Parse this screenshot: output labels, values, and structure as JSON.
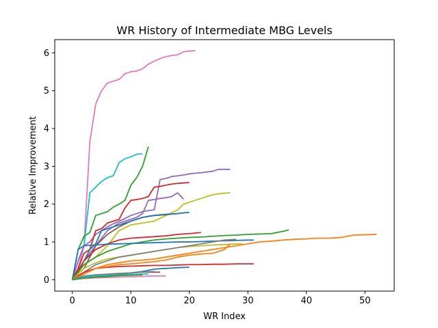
{
  "chart_data": {
    "type": "line",
    "title": "WR History of Intermediate MBG Levels",
    "xlabel": "WR Index",
    "ylabel": "Relative Improvement",
    "xlim": [
      -3,
      55
    ],
    "ylim": [
      -0.3,
      6.35
    ],
    "xticks": [
      0,
      10,
      20,
      30,
      40,
      50
    ],
    "yticks": [
      0,
      1,
      2,
      3,
      4,
      5,
      6
    ],
    "grid": false,
    "legend": "none",
    "series": [
      {
        "color": "#e377c2",
        "x": [
          0,
          1,
          2,
          3,
          4,
          5,
          6,
          7,
          8,
          9,
          10,
          11,
          12,
          13,
          14,
          15,
          16,
          17,
          18,
          19,
          20,
          21
        ],
        "y": [
          0,
          0.3,
          0.9,
          3.65,
          4.65,
          5.0,
          5.2,
          5.25,
          5.3,
          5.45,
          5.5,
          5.52,
          5.58,
          5.7,
          5.78,
          5.85,
          5.9,
          5.93,
          5.95,
          6.03,
          6.05,
          6.06
        ]
      },
      {
        "color": "#17becf",
        "x": [
          0,
          1,
          2,
          3,
          4,
          5,
          6,
          7,
          8,
          9,
          10,
          11,
          12
        ],
        "y": [
          0,
          0.5,
          0.9,
          2.3,
          2.45,
          2.6,
          2.7,
          2.75,
          3.1,
          3.2,
          3.25,
          3.32,
          3.33
        ]
      },
      {
        "color": "#2ca02c",
        "x": [
          0,
          1,
          2,
          3,
          4,
          5,
          6,
          7,
          8,
          9,
          10,
          11,
          12,
          13
        ],
        "y": [
          0,
          0.8,
          1.15,
          1.25,
          1.7,
          1.75,
          1.8,
          1.92,
          2.0,
          2.1,
          2.5,
          2.7,
          3.0,
          3.52
        ]
      },
      {
        "color": "#9467bd",
        "x": [
          0,
          1,
          2,
          3,
          4,
          5,
          6,
          7,
          8,
          9,
          10,
          11,
          12,
          13,
          14,
          15,
          16,
          17,
          18,
          19,
          20,
          21,
          22,
          23,
          24,
          25,
          26,
          27
        ],
        "y": [
          0,
          0.5,
          0.9,
          1.0,
          1.2,
          1.3,
          1.4,
          1.48,
          1.55,
          1.62,
          1.7,
          1.75,
          1.8,
          1.83,
          1.85,
          2.65,
          2.68,
          2.73,
          2.75,
          2.77,
          2.8,
          2.82,
          2.83,
          2.85,
          2.87,
          2.92,
          2.92,
          2.92
        ]
      },
      {
        "color": "#d62728",
        "x": [
          0,
          1,
          2,
          3,
          4,
          5,
          6,
          7,
          8,
          9,
          10,
          11,
          12,
          13,
          14,
          15,
          16,
          17,
          18,
          19,
          20
        ],
        "y": [
          0,
          0.3,
          0.7,
          0.8,
          1.3,
          1.35,
          1.5,
          1.55,
          1.6,
          1.9,
          2.1,
          2.12,
          2.15,
          2.2,
          2.45,
          2.47,
          2.5,
          2.53,
          2.55,
          2.56,
          2.57
        ]
      },
      {
        "color": "#bcbd22",
        "x": [
          0,
          2,
          4,
          6,
          8,
          10,
          12,
          14,
          16,
          18,
          19,
          20,
          21,
          22,
          23,
          24,
          25,
          26,
          27
        ],
        "y": [
          0,
          0.4,
          0.6,
          0.9,
          1.3,
          1.45,
          1.5,
          1.55,
          1.7,
          1.85,
          2.0,
          2.05,
          2.1,
          2.15,
          2.2,
          2.25,
          2.27,
          2.29,
          2.3
        ]
      },
      {
        "color": "#9467bd",
        "x": [
          0,
          1,
          2,
          3,
          4,
          5,
          6,
          7,
          8,
          9,
          10,
          11,
          12,
          13,
          14,
          15,
          16,
          17,
          18,
          19
        ],
        "y": [
          0,
          0.2,
          0.5,
          0.7,
          0.9,
          1.1,
          1.3,
          1.4,
          1.5,
          1.55,
          1.6,
          1.65,
          1.75,
          2.1,
          2.12,
          2.15,
          2.17,
          2.2,
          2.3,
          2.13
        ]
      },
      {
        "color": "#8c564b",
        "x": [
          0,
          2,
          4,
          6,
          8,
          10,
          12,
          14,
          16,
          18
        ],
        "y": [
          0,
          0.3,
          0.9,
          1.2,
          1.4,
          1.55,
          1.65,
          1.7,
          1.72,
          1.75
        ]
      },
      {
        "color": "#1f77b4",
        "x": [
          0,
          1,
          2,
          3,
          4,
          5,
          6,
          7,
          8,
          9,
          10,
          11,
          12,
          13,
          14,
          15,
          16,
          17,
          18,
          19,
          20
        ],
        "y": [
          0,
          0.2,
          0.5,
          0.8,
          0.95,
          1.3,
          1.35,
          1.4,
          1.45,
          1.5,
          1.55,
          1.6,
          1.65,
          1.68,
          1.7,
          1.72,
          1.73,
          1.74,
          1.75,
          1.77,
          1.78
        ]
      },
      {
        "color": "#d62728",
        "x": [
          0,
          2,
          4,
          6,
          8,
          10,
          12,
          14,
          16,
          18,
          20,
          22
        ],
        "y": [
          0,
          0.5,
          0.8,
          0.95,
          1.05,
          1.1,
          1.12,
          1.14,
          1.16,
          1.2,
          1.22,
          1.25
        ]
      },
      {
        "color": "#2ca02c",
        "x": [
          0,
          2,
          4,
          6,
          8,
          10,
          12,
          14,
          16,
          18,
          20,
          22,
          24,
          26,
          28,
          30,
          32,
          34,
          36,
          37
        ],
        "y": [
          0,
          0.4,
          0.6,
          0.75,
          0.85,
          0.95,
          1.0,
          1.05,
          1.08,
          1.1,
          1.12,
          1.13,
          1.15,
          1.17,
          1.18,
          1.2,
          1.21,
          1.22,
          1.28,
          1.32
        ]
      },
      {
        "color": "#ff7f0e",
        "x": [
          0,
          2,
          4,
          6,
          8,
          10,
          12,
          14,
          16,
          18,
          20,
          22,
          24,
          26,
          28,
          30,
          32,
          34,
          36,
          38,
          40,
          42,
          44,
          46,
          48,
          50,
          52
        ],
        "y": [
          0,
          0.2,
          0.3,
          0.4,
          0.45,
          0.5,
          0.52,
          0.55,
          0.6,
          0.65,
          0.7,
          0.75,
          0.8,
          0.85,
          0.9,
          0.95,
          1.0,
          1.02,
          1.05,
          1.07,
          1.08,
          1.1,
          1.1,
          1.12,
          1.18,
          1.19,
          1.2
        ]
      },
      {
        "color": "#1f77b4",
        "x": [
          0,
          1,
          2,
          4,
          6,
          8,
          10,
          12,
          14,
          16,
          18,
          20,
          22,
          24,
          26,
          28,
          30,
          31
        ],
        "y": [
          0,
          0.8,
          0.9,
          0.92,
          0.94,
          0.95,
          0.96,
          0.97,
          0.98,
          0.99,
          1.0,
          1.0,
          1.01,
          1.02,
          1.03,
          1.04,
          1.05,
          1.05
        ]
      },
      {
        "color": "#bcbd22",
        "x": [
          0,
          2,
          4,
          6,
          8,
          10,
          12,
          14,
          16,
          18,
          20,
          22,
          24,
          26,
          28,
          29
        ],
        "y": [
          0,
          0.3,
          0.45,
          0.55,
          0.6,
          0.65,
          0.7,
          0.75,
          0.8,
          0.85,
          0.88,
          0.9,
          0.92,
          0.93,
          0.95,
          0.95
        ]
      },
      {
        "color": "#7f7f7f",
        "x": [
          0,
          2,
          4,
          6,
          8,
          10,
          12,
          14,
          16,
          18,
          20,
          22,
          24,
          26,
          28
        ],
        "y": [
          0,
          0.2,
          0.4,
          0.5,
          0.6,
          0.65,
          0.7,
          0.75,
          0.8,
          0.85,
          0.9,
          0.95,
          1.0,
          1.05,
          1.07
        ]
      },
      {
        "color": "#d62728",
        "x": [
          0,
          2,
          4,
          6,
          8,
          10,
          12,
          14,
          16,
          18,
          20,
          22,
          24,
          26,
          28,
          31
        ],
        "y": [
          0,
          0.2,
          0.3,
          0.33,
          0.35,
          0.36,
          0.37,
          0.38,
          0.38,
          0.39,
          0.4,
          0.4,
          0.41,
          0.41,
          0.42,
          0.42
        ]
      },
      {
        "color": "#ff7f0e",
        "x": [
          0,
          2,
          4,
          6,
          8,
          10,
          12,
          14,
          16,
          18,
          20,
          22,
          24,
          26,
          27
        ],
        "y": [
          0,
          0.15,
          0.3,
          0.35,
          0.4,
          0.42,
          0.45,
          0.48,
          0.52,
          0.6,
          0.65,
          0.68,
          0.7,
          0.8,
          0.95
        ]
      },
      {
        "color": "#1f77b4",
        "x": [
          0,
          2,
          4,
          6,
          8,
          10,
          12,
          14,
          16,
          18,
          20
        ],
        "y": [
          0,
          0.05,
          0.08,
          0.1,
          0.15,
          0.18,
          0.22,
          0.28,
          0.3,
          0.32,
          0.33
        ]
      },
      {
        "color": "#8c564b",
        "x": [
          0,
          2,
          4,
          6,
          8,
          10,
          12,
          14,
          15
        ],
        "y": [
          0,
          0.1,
          0.12,
          0.14,
          0.16,
          0.18,
          0.2,
          0.2,
          0.2
        ]
      },
      {
        "color": "#e377c2",
        "x": [
          0,
          2,
          4,
          6,
          8,
          10,
          12,
          14,
          16
        ],
        "y": [
          0,
          0.03,
          0.05,
          0.06,
          0.07,
          0.08,
          0.09,
          0.1,
          0.1
        ]
      },
      {
        "color": "#7f7f7f",
        "x": [
          0,
          2,
          4,
          6,
          8,
          10,
          12,
          14
        ],
        "y": [
          0,
          0.1,
          0.13,
          0.15,
          0.17,
          0.18,
          0.2,
          0.22
        ]
      },
      {
        "color": "#17becf",
        "x": [
          0,
          2,
          4,
          6,
          8,
          10,
          12,
          13
        ],
        "y": [
          0,
          0.08,
          0.1,
          0.12,
          0.13,
          0.14,
          0.15,
          0.15
        ]
      },
      {
        "color": "#2ca02c",
        "x": [
          0,
          2,
          4,
          6,
          8,
          10,
          12
        ],
        "y": [
          0,
          0.05,
          0.07,
          0.09,
          0.11,
          0.12,
          0.13
        ]
      }
    ]
  }
}
